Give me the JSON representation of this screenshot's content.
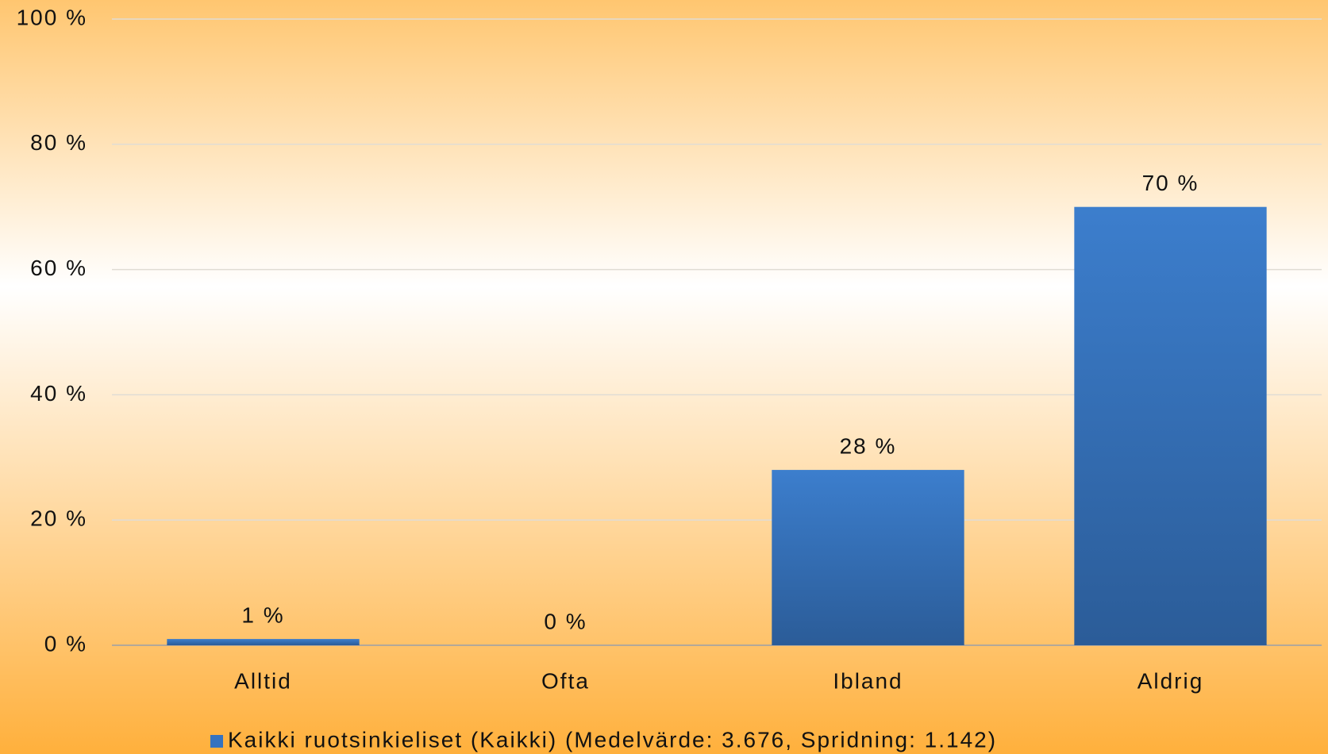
{
  "chart_data": {
    "type": "bar",
    "categories": [
      "Alltid",
      "Ofta",
      "Ibland",
      "Aldrig"
    ],
    "series": [
      {
        "name": "Kaikki ruotsinkieliset (Kaikki) (Medelvärde: 3.676, Spridning: 1.142)",
        "color": "#3573c0",
        "values": [
          1,
          0,
          28,
          70
        ],
        "value_labels": [
          "1 %",
          "0 %",
          "28 %",
          "70 %"
        ]
      }
    ],
    "ylim": [
      0,
      100
    ],
    "yticks": [
      {
        "value": 0,
        "label": "0 %"
      },
      {
        "value": 20,
        "label": "20 %"
      },
      {
        "value": 40,
        "label": "40 %"
      },
      {
        "value": 60,
        "label": "60 %"
      },
      {
        "value": 80,
        "label": "80 %"
      },
      {
        "value": 100,
        "label": "100 %"
      }
    ],
    "grid": true,
    "legend": "bottom"
  }
}
